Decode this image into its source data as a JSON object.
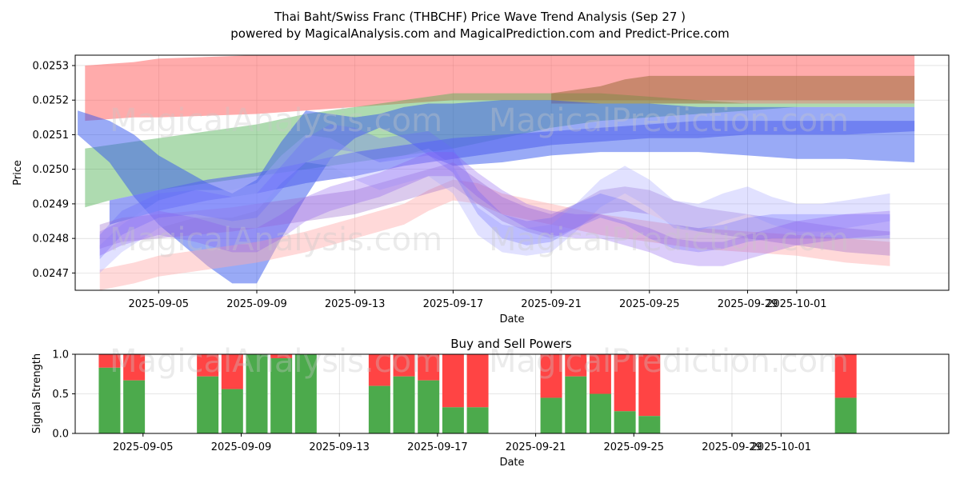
{
  "chart_data": [
    {
      "type": "area",
      "title": "Thai Baht/Swiss Franc (THBCHF) Price Wave Trend Analysis (Sep 27 )",
      "subtitle": "powered by MagicalAnalysis.com and MagicalPrediction.com and Predict-Price.com",
      "xlabel": "Date",
      "ylabel": "Price",
      "xlim": [
        -3.4,
        32.2
      ],
      "ylim": [
        0.02465,
        0.02533
      ],
      "x_ticks": [
        {
          "day": 0,
          "label": "2025-09-05"
        },
        {
          "day": 4,
          "label": "2025-09-09"
        },
        {
          "day": 8,
          "label": "2025-09-13"
        },
        {
          "day": 12,
          "label": "2025-09-17"
        },
        {
          "day": 16,
          "label": "2025-09-21"
        },
        {
          "day": 20,
          "label": "2025-09-25"
        },
        {
          "day": 24,
          "label": "2025-09-29"
        },
        {
          "day": 26,
          "label": "2025-10-01"
        }
      ],
      "y_ticks": [
        0.0247,
        0.0248,
        0.0249,
        0.025,
        0.0251,
        0.0252,
        0.0253
      ],
      "grid": true,
      "bands": [
        {
          "name": "red-upper",
          "color": "#ff6666",
          "opacity": 0.55,
          "x": [
            -3,
            -1,
            0,
            4,
            8,
            12,
            16,
            20,
            24,
            28,
            30.8
          ],
          "upper": [
            0.0253,
            0.02531,
            0.02532,
            0.02533,
            0.02533,
            0.02533,
            0.02533,
            0.02533,
            0.02533,
            0.02533,
            0.02533
          ],
          "lower": [
            0.02514,
            0.02515,
            0.02515,
            0.02516,
            0.02518,
            0.0252,
            0.0252,
            0.0252,
            0.0252,
            0.0252,
            0.0252
          ]
        },
        {
          "name": "green",
          "color": "#4caf50",
          "opacity": 0.45,
          "x": [
            -3,
            -2,
            0,
            2,
            4,
            6,
            8,
            10,
            12,
            14,
            16,
            18,
            20,
            22,
            24,
            26,
            28,
            30.8
          ],
          "upper": [
            0.02506,
            0.02507,
            0.02509,
            0.02511,
            0.02513,
            0.02516,
            0.02518,
            0.0252,
            0.02522,
            0.02522,
            0.02522,
            0.02522,
            0.02521,
            0.0252,
            0.02519,
            0.02519,
            0.02519,
            0.02519
          ],
          "lower": [
            0.02489,
            0.02491,
            0.02494,
            0.02496,
            0.02498,
            0.025,
            0.02502,
            0.02504,
            0.02506,
            0.02509,
            0.02512,
            0.02514,
            0.02515,
            0.02516,
            0.02517,
            0.02518,
            0.02518,
            0.02518
          ]
        },
        {
          "name": "brown-upper",
          "color": "#9c6b3c",
          "opacity": 0.55,
          "x": [
            16,
            18,
            19,
            20,
            22,
            24,
            26,
            28,
            30.8
          ],
          "upper": [
            0.02522,
            0.02524,
            0.02526,
            0.02527,
            0.02527,
            0.02527,
            0.02527,
            0.02527,
            0.02527
          ],
          "lower": [
            0.02519,
            0.02519,
            0.02519,
            0.02519,
            0.02519,
            0.02519,
            0.02519,
            0.02519,
            0.02519
          ]
        },
        {
          "name": "blue-dark",
          "color": "#3355ee",
          "opacity": 0.5,
          "x": [
            -3.3,
            -2,
            -1,
            0,
            1,
            2,
            3,
            4,
            5,
            6,
            7,
            8,
            9,
            10,
            11,
            12,
            14,
            16,
            18,
            20,
            22,
            24,
            26,
            28,
            30.8
          ],
          "upper": [
            0.02517,
            0.02514,
            0.0251,
            0.02504,
            0.025,
            0.02496,
            0.02493,
            0.02497,
            0.02508,
            0.02517,
            0.02516,
            0.02515,
            0.02516,
            0.02518,
            0.02519,
            0.02519,
            0.0252,
            0.0252,
            0.02519,
            0.02519,
            0.02518,
            0.02518,
            0.02518,
            0.02518,
            0.02518
          ],
          "lower": [
            0.0251,
            0.02502,
            0.02492,
            0.02484,
            0.02478,
            0.02472,
            0.02467,
            0.02467,
            0.0248,
            0.02492,
            0.02503,
            0.02509,
            0.02512,
            0.02509,
            0.02504,
            0.02501,
            0.02502,
            0.02504,
            0.02505,
            0.02505,
            0.02505,
            0.02504,
            0.02503,
            0.02503,
            0.02502
          ]
        },
        {
          "name": "blue-upper-trend",
          "color": "#5566ee",
          "opacity": 0.6,
          "x": [
            -2,
            0,
            2,
            4,
            6,
            8,
            10,
            12,
            14,
            16,
            18,
            20,
            22,
            24,
            26,
            28,
            30.8
          ],
          "upper": [
            0.02491,
            0.02494,
            0.02497,
            0.02499,
            0.02502,
            0.02505,
            0.02507,
            0.02509,
            0.0251,
            0.02511,
            0.02512,
            0.02513,
            0.02514,
            0.02514,
            0.02514,
            0.02514,
            0.02514
          ],
          "lower": [
            0.02484,
            0.02488,
            0.02491,
            0.02493,
            0.02496,
            0.02498,
            0.02501,
            0.02503,
            0.02505,
            0.02507,
            0.02508,
            0.02509,
            0.02509,
            0.0251,
            0.0251,
            0.0251,
            0.02511
          ]
        },
        {
          "name": "pink-lower",
          "color": "#ffaaaa",
          "opacity": 0.45,
          "x": [
            -2.4,
            -1,
            0,
            2,
            4,
            6,
            8,
            10,
            11,
            12,
            13,
            14,
            16,
            18,
            20,
            22,
            24,
            26,
            28,
            29.8
          ],
          "upper": [
            0.02471,
            0.02473,
            0.02475,
            0.02477,
            0.02479,
            0.02482,
            0.02486,
            0.0249,
            0.02494,
            0.02497,
            0.02496,
            0.02493,
            0.0249,
            0.02487,
            0.02485,
            0.02483,
            0.02482,
            0.02481,
            0.0248,
            0.02479
          ],
          "lower": [
            0.02465,
            0.02467,
            0.02469,
            0.02471,
            0.02473,
            0.02476,
            0.0248,
            0.02484,
            0.02488,
            0.02491,
            0.0249,
            0.02487,
            0.02484,
            0.02481,
            0.02479,
            0.02477,
            0.02476,
            0.02475,
            0.02473,
            0.02472
          ]
        },
        {
          "name": "purple-wave",
          "color": "#9966cc",
          "opacity": 0.35,
          "x": [
            -2.4,
            -1.5,
            0,
            1.5,
            3,
            4,
            5,
            6,
            7,
            8,
            9,
            10,
            11,
            12,
            13,
            14,
            15,
            16,
            17,
            18,
            19,
            20,
            21,
            22,
            23,
            24,
            25,
            26,
            27,
            28,
            29.8
          ],
          "upper": [
            0.02484,
            0.02486,
            0.02487,
            0.02488,
            0.02489,
            0.0249,
            0.02491,
            0.02492,
            0.02493,
            0.02494,
            0.02496,
            0.02498,
            0.025,
            0.02502,
            0.02497,
            0.02492,
            0.02489,
            0.02487,
            0.0249,
            0.02494,
            0.02495,
            0.02494,
            0.02491,
            0.02489,
            0.02488,
            0.02487,
            0.02486,
            0.02485,
            0.02484,
            0.02483,
            0.02482
          ],
          "lower": [
            0.02477,
            0.02479,
            0.0248,
            0.02481,
            0.02482,
            0.02483,
            0.02484,
            0.02485,
            0.02486,
            0.02487,
            0.02489,
            0.02491,
            0.02493,
            0.02495,
            0.0249,
            0.02485,
            0.02482,
            0.0248,
            0.02483,
            0.02487,
            0.02488,
            0.02487,
            0.02484,
            0.02482,
            0.02481,
            0.0248,
            0.02479,
            0.02478,
            0.02477,
            0.02476,
            0.02475
          ]
        },
        {
          "name": "lavender-wave",
          "color": "#aaaaff",
          "opacity": 0.35,
          "x": [
            -2.4,
            -1.5,
            0,
            1.5,
            3,
            4,
            5,
            6,
            7,
            8,
            9,
            10,
            11,
            12,
            13,
            14,
            15,
            16,
            17,
            18,
            19,
            20,
            21,
            22,
            23,
            24,
            25,
            26,
            27,
            28,
            29.8
          ],
          "upper": [
            0.02478,
            0.02484,
            0.02491,
            0.02494,
            0.02494,
            0.02496,
            0.02504,
            0.0251,
            0.02509,
            0.02505,
            0.02502,
            0.02504,
            0.02506,
            0.02501,
            0.02489,
            0.02484,
            0.02483,
            0.02484,
            0.0249,
            0.02497,
            0.02501,
            0.02497,
            0.02491,
            0.0249,
            0.02493,
            0.02495,
            0.02492,
            0.0249,
            0.0249,
            0.02491,
            0.02493
          ],
          "lower": [
            0.0247,
            0.02476,
            0.02483,
            0.02486,
            0.02486,
            0.02488,
            0.02496,
            0.02502,
            0.02501,
            0.02497,
            0.02494,
            0.02496,
            0.02498,
            0.02493,
            0.02481,
            0.02476,
            0.02475,
            0.02476,
            0.02482,
            0.02489,
            0.02493,
            0.02489,
            0.02483,
            0.02482,
            0.02485,
            0.02487,
            0.02484,
            0.02482,
            0.02482,
            0.02483,
            0.02485
          ]
        },
        {
          "name": "blue-wave",
          "color": "#6666ff",
          "opacity": 0.3,
          "x": [
            -2.4,
            -1.5,
            0,
            1.5,
            3,
            4,
            5,
            6,
            7,
            8,
            9,
            10,
            11,
            12,
            13,
            14,
            15,
            16,
            17,
            18,
            19,
            20,
            21,
            22,
            23,
            24,
            25,
            26,
            27,
            28,
            29.8
          ],
          "upper": [
            0.02481,
            0.02488,
            0.02493,
            0.02494,
            0.02492,
            0.02493,
            0.02501,
            0.02509,
            0.02513,
            0.02512,
            0.02509,
            0.0251,
            0.02511,
            0.02506,
            0.02494,
            0.02487,
            0.02485,
            0.02486,
            0.0249,
            0.02493,
            0.02491,
            0.02487,
            0.02484,
            0.02483,
            0.02484,
            0.02486,
            0.02487,
            0.02487,
            0.02487,
            0.02487,
            0.02487
          ],
          "lower": [
            0.02474,
            0.02481,
            0.02486,
            0.02487,
            0.02485,
            0.02486,
            0.02494,
            0.02502,
            0.02506,
            0.02505,
            0.02502,
            0.02503,
            0.02504,
            0.02499,
            0.02487,
            0.0248,
            0.02478,
            0.02479,
            0.02483,
            0.02486,
            0.02484,
            0.0248,
            0.02477,
            0.02476,
            0.02477,
            0.02479,
            0.0248,
            0.0248,
            0.0248,
            0.0248,
            0.0248
          ]
        },
        {
          "name": "violet-wave",
          "color": "#8855ee",
          "opacity": 0.3,
          "x": [
            -2.4,
            -1.5,
            0,
            1.5,
            3,
            4,
            5,
            6,
            7,
            8,
            9,
            10,
            11,
            12,
            13,
            14,
            15,
            16,
            17,
            18,
            19,
            20,
            21,
            22,
            23,
            24,
            25,
            26,
            27,
            28,
            29.8
          ],
          "upper": [
            0.02482,
            0.02485,
            0.02488,
            0.02486,
            0.02483,
            0.02483,
            0.02487,
            0.02492,
            0.02495,
            0.02497,
            0.02499,
            0.02502,
            0.02505,
            0.02505,
            0.02499,
            0.02494,
            0.0249,
            0.02488,
            0.02487,
            0.02487,
            0.02485,
            0.02483,
            0.0248,
            0.02479,
            0.02479,
            0.02481,
            0.02483,
            0.02485,
            0.02486,
            0.02487,
            0.02488
          ],
          "lower": [
            0.02475,
            0.02478,
            0.02481,
            0.02479,
            0.02476,
            0.02476,
            0.0248,
            0.02485,
            0.02488,
            0.0249,
            0.02492,
            0.02495,
            0.02498,
            0.02498,
            0.02492,
            0.02487,
            0.02483,
            0.02481,
            0.0248,
            0.0248,
            0.02478,
            0.02476,
            0.02473,
            0.02472,
            0.02472,
            0.02474,
            0.02476,
            0.02478,
            0.02479,
            0.0248,
            0.02481
          ]
        }
      ],
      "watermarks": [
        "MagicalAnalysis.com",
        "MagicalPrediction.com"
      ]
    },
    {
      "type": "bar",
      "title": "Buy and Sell Powers",
      "xlabel": "Date",
      "ylabel": "Signal Strength",
      "xlim": [
        -3.4,
        32.2
      ],
      "ylim": [
        0,
        1
      ],
      "y_ticks": [
        0.0,
        0.5,
        1.0
      ],
      "y_tick_labels": [
        "0.0",
        "0.5",
        "1.0"
      ],
      "grid": true,
      "series": [
        {
          "name": "Buy",
          "color": "#4caa4c"
        },
        {
          "name": "Sell",
          "color": "#ff4444"
        }
      ],
      "bars": [
        {
          "day": -2,
          "buy": 0.83
        },
        {
          "day": -1,
          "buy": 0.67
        },
        {
          "day": 2,
          "buy": 0.72
        },
        {
          "day": 3,
          "buy": 0.56
        },
        {
          "day": 4,
          "buy": 1.0
        },
        {
          "day": 5,
          "buy": 0.95
        },
        {
          "day": 6,
          "buy": 1.0
        },
        {
          "day": 9,
          "buy": 0.6
        },
        {
          "day": 10,
          "buy": 0.72
        },
        {
          "day": 11,
          "buy": 0.67
        },
        {
          "day": 12,
          "buy": 0.33
        },
        {
          "day": 13,
          "buy": 0.33
        },
        {
          "day": 16,
          "buy": 0.45
        },
        {
          "day": 17,
          "buy": 0.72
        },
        {
          "day": 18,
          "buy": 0.5
        },
        {
          "day": 19,
          "buy": 0.28
        },
        {
          "day": 20,
          "buy": 0.22
        },
        {
          "day": 28,
          "buy": 0.45
        }
      ]
    }
  ]
}
